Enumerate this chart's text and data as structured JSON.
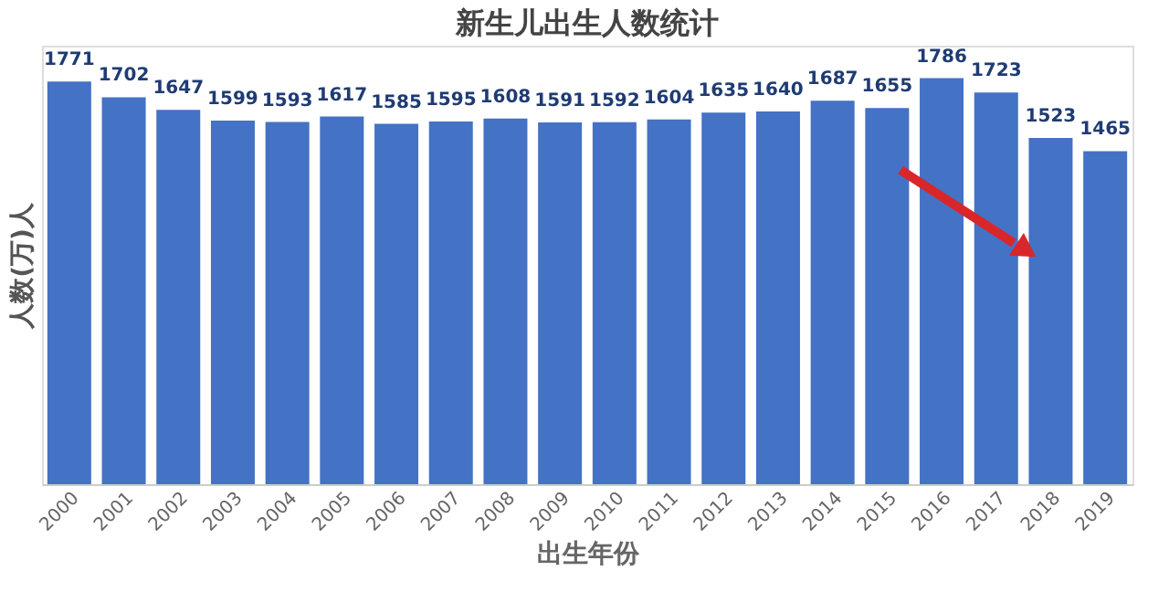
{
  "chart_data": {
    "type": "bar",
    "title": "新生儿出生人数统计",
    "xlabel": "出生年份",
    "ylabel": "人数(万)人",
    "categories": [
      "2000",
      "2001",
      "2002",
      "2003",
      "2004",
      "2005",
      "2006",
      "2007",
      "2008",
      "2009",
      "2010",
      "2011",
      "2012",
      "2013",
      "2014",
      "2015",
      "2016",
      "2017",
      "2018",
      "2019"
    ],
    "values": [
      1771,
      1702,
      1647,
      1599,
      1593,
      1617,
      1585,
      1595,
      1608,
      1591,
      1592,
      1604,
      1635,
      1640,
      1687,
      1655,
      1786,
      1723,
      1523,
      1465
    ],
    "color": "#4472c4",
    "data_labels": true,
    "grid": false
  }
}
